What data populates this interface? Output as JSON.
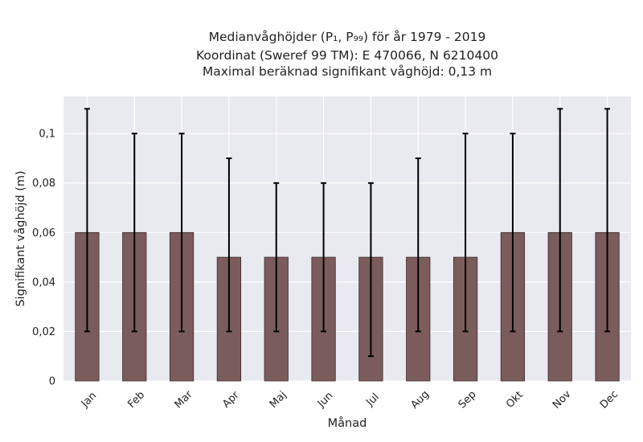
{
  "chart_data": {
    "type": "bar",
    "title_lines": [
      "Medianvåghöjder (P₁, P₉₉) för år 1979 - 2019",
      "Koordinat (Sweref 99 TM): E 470066, N 6210400",
      "Maximal beräknad signifikant våghöjd: 0,13 m"
    ],
    "xlabel": "Månad",
    "ylabel": "Signifikant våghöjd (m)",
    "categories": [
      "Jan",
      "Feb",
      "Mar",
      "Apr",
      "Maj",
      "Jun",
      "Jul",
      "Aug",
      "Sep",
      "Okt",
      "Nov",
      "Dec"
    ],
    "values": [
      0.06,
      0.06,
      0.06,
      0.05,
      0.05,
      0.05,
      0.05,
      0.05,
      0.05,
      0.06,
      0.06,
      0.06
    ],
    "err_low": [
      0.02,
      0.02,
      0.02,
      0.02,
      0.02,
      0.02,
      0.01,
      0.02,
      0.02,
      0.02,
      0.02,
      0.02
    ],
    "err_high": [
      0.11,
      0.1,
      0.1,
      0.09,
      0.08,
      0.08,
      0.08,
      0.09,
      0.1,
      0.1,
      0.11,
      0.11
    ],
    "ylim": [
      0,
      0.115
    ],
    "yticks": [
      0,
      0.02,
      0.04,
      0.06,
      0.08,
      0.1
    ],
    "ytick_labels": [
      "0",
      "0,02",
      "0,04",
      "0,06",
      "0,08",
      "0,1"
    ],
    "grid": true,
    "colors": {
      "bar": "#7b5c5c",
      "bar_edge": "#3a2a2a",
      "plot_bg": "#e9e9f0",
      "grid": "#ffffff",
      "error": "#000000"
    }
  }
}
